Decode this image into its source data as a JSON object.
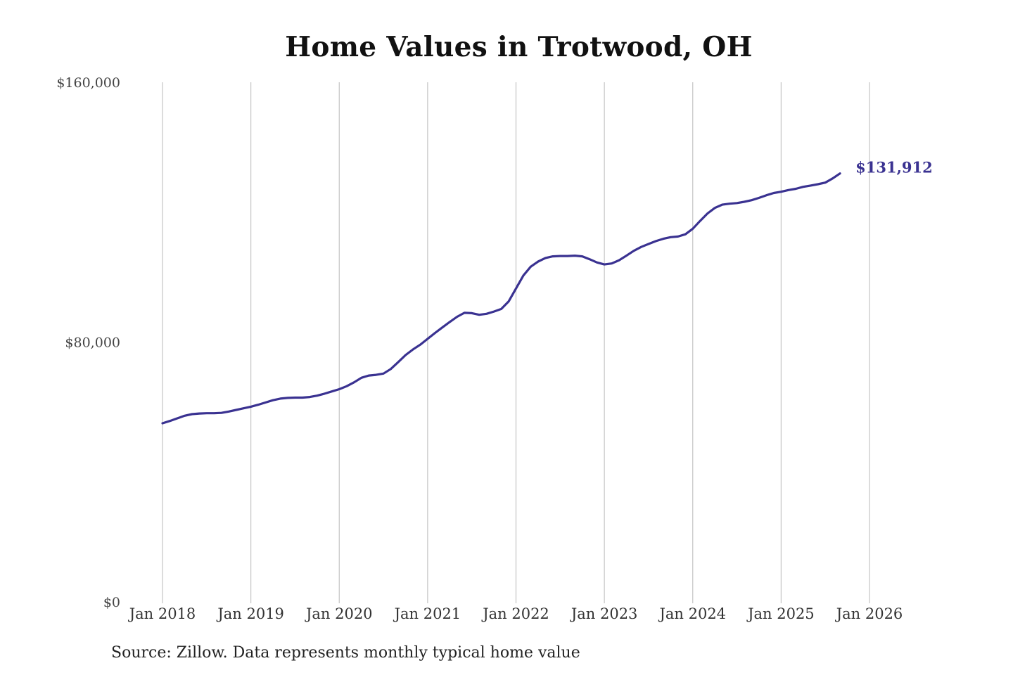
{
  "chart_data": {
    "type": "line",
    "title": "Home Values in Trotwood, OH",
    "source": "Source: Zillow. Data represents monthly typical home value",
    "x_tick_labels": [
      "Jan 2018",
      "Jan 2019",
      "Jan 2020",
      "Jan 2021",
      "Jan 2022",
      "Jan 2023",
      "Jan 2024",
      "Jan 2025",
      "Jan 2026"
    ],
    "y_tick_values": [
      0,
      80000,
      160000
    ],
    "y_tick_labels": [
      "$0",
      "$80,000",
      "$160,000"
    ],
    "ylim": [
      0,
      160000
    ],
    "xlim": [
      "2018-01",
      "2026-01"
    ],
    "grid": {
      "vertical": true,
      "horizontal": false
    },
    "series": [
      {
        "color": "#3a3291",
        "end_label": "$131,912",
        "points": [
          [
            "2018-01",
            55000
          ],
          [
            "2018-02",
            55700
          ],
          [
            "2018-03",
            56500
          ],
          [
            "2018-04",
            57300
          ],
          [
            "2018-05",
            57800
          ],
          [
            "2018-06",
            58000
          ],
          [
            "2018-07",
            58100
          ],
          [
            "2018-08",
            58100
          ],
          [
            "2018-09",
            58200
          ],
          [
            "2018-10",
            58600
          ],
          [
            "2018-11",
            59100
          ],
          [
            "2018-12",
            59600
          ],
          [
            "2019-01",
            60100
          ],
          [
            "2019-02",
            60700
          ],
          [
            "2019-03",
            61400
          ],
          [
            "2019-04",
            62100
          ],
          [
            "2019-05",
            62600
          ],
          [
            "2019-06",
            62800
          ],
          [
            "2019-07",
            62900
          ],
          [
            "2019-08",
            62900
          ],
          [
            "2019-09",
            63100
          ],
          [
            "2019-10",
            63500
          ],
          [
            "2019-11",
            64100
          ],
          [
            "2019-12",
            64800
          ],
          [
            "2020-01",
            65500
          ],
          [
            "2020-02",
            66400
          ],
          [
            "2020-03",
            67600
          ],
          [
            "2020-04",
            69000
          ],
          [
            "2020-05",
            69700
          ],
          [
            "2020-06",
            69900
          ],
          [
            "2020-07",
            70300
          ],
          [
            "2020-08",
            71700
          ],
          [
            "2020-09",
            73800
          ],
          [
            "2020-10",
            76000
          ],
          [
            "2020-11",
            77700
          ],
          [
            "2020-12",
            79200
          ],
          [
            "2021-01",
            81000
          ],
          [
            "2021-02",
            82800
          ],
          [
            "2021-03",
            84500
          ],
          [
            "2021-04",
            86200
          ],
          [
            "2021-05",
            87800
          ],
          [
            "2021-06",
            89000
          ],
          [
            "2021-07",
            88900
          ],
          [
            "2021-08",
            88400
          ],
          [
            "2021-09",
            88700
          ],
          [
            "2021-10",
            89400
          ],
          [
            "2021-11",
            90200
          ],
          [
            "2021-12",
            92500
          ],
          [
            "2022-01",
            96500
          ],
          [
            "2022-02",
            100500
          ],
          [
            "2022-03",
            103200
          ],
          [
            "2022-04",
            104800
          ],
          [
            "2022-05",
            105900
          ],
          [
            "2022-06",
            106400
          ],
          [
            "2022-07",
            106500
          ],
          [
            "2022-08",
            106500
          ],
          [
            "2022-09",
            106600
          ],
          [
            "2022-10",
            106400
          ],
          [
            "2022-11",
            105500
          ],
          [
            "2022-12",
            104500
          ],
          [
            "2023-01",
            103900
          ],
          [
            "2023-02",
            104200
          ],
          [
            "2023-03",
            105200
          ],
          [
            "2023-04",
            106600
          ],
          [
            "2023-05",
            108100
          ],
          [
            "2023-06",
            109300
          ],
          [
            "2023-07",
            110200
          ],
          [
            "2023-08",
            111100
          ],
          [
            "2023-09",
            111800
          ],
          [
            "2023-10",
            112300
          ],
          [
            "2023-11",
            112500
          ],
          [
            "2023-12",
            113200
          ],
          [
            "2024-01",
            114900
          ],
          [
            "2024-02",
            117300
          ],
          [
            "2024-03",
            119600
          ],
          [
            "2024-04",
            121300
          ],
          [
            "2024-05",
            122300
          ],
          [
            "2024-06",
            122600
          ],
          [
            "2024-07",
            122800
          ],
          [
            "2024-08",
            123200
          ],
          [
            "2024-09",
            123700
          ],
          [
            "2024-10",
            124400
          ],
          [
            "2024-11",
            125200
          ],
          [
            "2024-12",
            125900
          ],
          [
            "2025-01",
            126300
          ],
          [
            "2025-02",
            126800
          ],
          [
            "2025-03",
            127200
          ],
          [
            "2025-04",
            127800
          ],
          [
            "2025-05",
            128200
          ],
          [
            "2025-06",
            128600
          ],
          [
            "2025-07",
            129100
          ],
          [
            "2025-08",
            130400
          ],
          [
            "2025-09",
            131912
          ]
        ]
      }
    ]
  }
}
